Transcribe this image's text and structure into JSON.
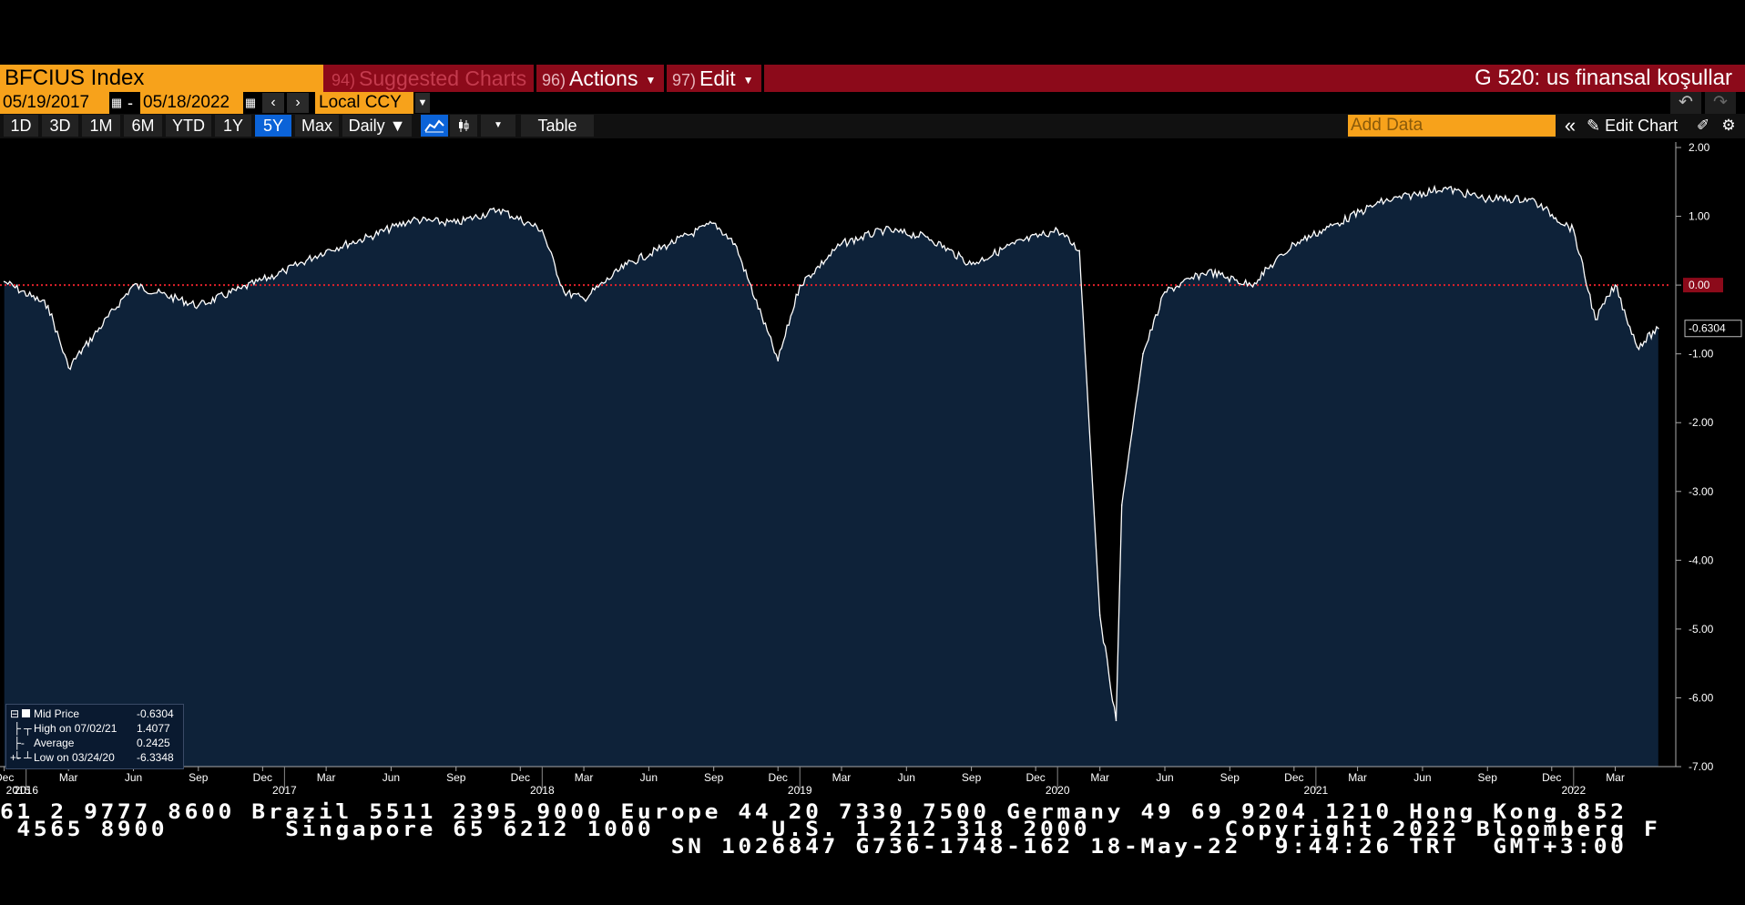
{
  "toolbar": {
    "ticker": "BFCIUS Index",
    "suggested": {
      "num": "94)",
      "label": "Suggested Charts"
    },
    "actions": {
      "num": "96)",
      "label": "Actions"
    },
    "edit": {
      "num": "97)",
      "label": "Edit"
    },
    "title": "G 520: us finansal koşullar"
  },
  "range": {
    "start": "05/19/2017",
    "sep": "-",
    "end": "05/18/2022",
    "currency": "Local CCY"
  },
  "periods": [
    "1D",
    "3D",
    "1M",
    "6M",
    "YTD",
    "1Y",
    "5Y",
    "Max"
  ],
  "active_period": "5Y",
  "frequency": "Daily ▼",
  "table_label": "Table",
  "add_data_placeholder": "Add Data",
  "edit_chart_label": "Edit Chart",
  "icons": {
    "calendar": "calendar-icon",
    "prev": "chevron-left-icon",
    "next": "chevron-right-icon",
    "undo": "undo-icon",
    "redo": "redo-icon",
    "line_chart": "line-chart-icon",
    "candle": "candlestick-icon",
    "collapse": "double-chevron-left-icon",
    "pencil": "pencil-icon",
    "chart_settings": "chart-settings-icon",
    "gear": "gear-icon"
  },
  "legend": {
    "mid_label": "Mid Price",
    "mid_value": "-0.6304",
    "high_label": "High on 07/02/21",
    "high_value": "1.4077",
    "avg_label": "Average",
    "avg_value": "0.2425",
    "low_label": "Low on 03/24/20",
    "low_value": "-6.3348"
  },
  "footer": {
    "line1": "61 2 9777 8600 Brazil 5511 2395 9000 Europe 44 20 7330 7500 Germany 49 69 9204 1210 Hong Kong 852",
    "line2": " 4565 8900       Singapore 65 6212 1000       U.S. 1 212 318 2000        Copyright 2022 Bloomberg F",
    "line3": "                                        SN 1026847 G736-1748-162 18-May-22  9:44:26 TRT  GMT+3:00"
  },
  "colors": {
    "area": "#0e2239",
    "line": "#ffffff",
    "zero_line": "#e0202a",
    "accent": "#f7a21b",
    "menu_bar": "#8c0a1a",
    "active": "#0b63d8"
  },
  "chart_data": {
    "type": "area",
    "series": [
      {
        "name": "Mid Price"
      }
    ],
    "last_value": "-0.6304",
    "ylim": [
      -7,
      2
    ],
    "y_ticks": [
      "2.00",
      "1.00",
      "0.00",
      "-1.00",
      "-2.00",
      "-3.00",
      "-4.00",
      "-5.00",
      "-6.00",
      "-7.00"
    ],
    "x_month_ticks": [
      "Dec",
      "Mar",
      "Jun",
      "Sep",
      "Dec",
      "Mar",
      "Jun",
      "Sep",
      "Dec",
      "Mar",
      "Jun",
      "Sep",
      "Dec",
      "Mar",
      "Jun",
      "Sep",
      "Dec",
      "Mar",
      "Jun",
      "Sep",
      "Dec",
      "Mar",
      "Jun",
      "Sep",
      "Dec",
      "Mar"
    ],
    "x_year_ticks": [
      "2015",
      "2016",
      "2017",
      "2018",
      "2019",
      "2020",
      "2021",
      "2022"
    ],
    "x": [
      "2015-12",
      "2016-02",
      "2016-03",
      "2016-06",
      "2016-09",
      "2016-11",
      "2017-01",
      "2017-03",
      "2017-05",
      "2017-07",
      "2017-09",
      "2017-11",
      "2018-01",
      "2018-02",
      "2018-03",
      "2018-05",
      "2018-07",
      "2018-09",
      "2018-10",
      "2018-12",
      "2019-01",
      "2019-03",
      "2019-05",
      "2019-07",
      "2019-09",
      "2019-11",
      "2020-01",
      "2020-02",
      "2020-03",
      "2020-03-24",
      "2020-04",
      "2020-05",
      "2020-06",
      "2020-08",
      "2020-10",
      "2020-12",
      "2021-02",
      "2021-04",
      "2021-07",
      "2021-09",
      "2021-11",
      "2022-01",
      "2022-02",
      "2022-03",
      "2022-04",
      "2022-05"
    ],
    "values": [
      0.05,
      -0.3,
      -1.2,
      0.0,
      -0.3,
      -0.05,
      0.2,
      0.5,
      0.7,
      0.95,
      0.9,
      1.1,
      0.8,
      -0.1,
      -0.2,
      0.3,
      0.6,
      0.9,
      0.6,
      -1.1,
      0.0,
      0.6,
      0.8,
      0.7,
      0.3,
      0.6,
      0.8,
      0.5,
      -4.8,
      -6.33,
      -3.2,
      -1.0,
      -0.1,
      0.2,
      0.0,
      0.6,
      0.9,
      1.2,
      1.41,
      1.25,
      1.25,
      0.8,
      -0.5,
      0.0,
      -0.9,
      -0.63
    ],
    "mean": 0.2425,
    "high": {
      "date": "07/02/21",
      "value": 1.4077
    },
    "low": {
      "date": "03/24/20",
      "value": -6.3348
    }
  }
}
